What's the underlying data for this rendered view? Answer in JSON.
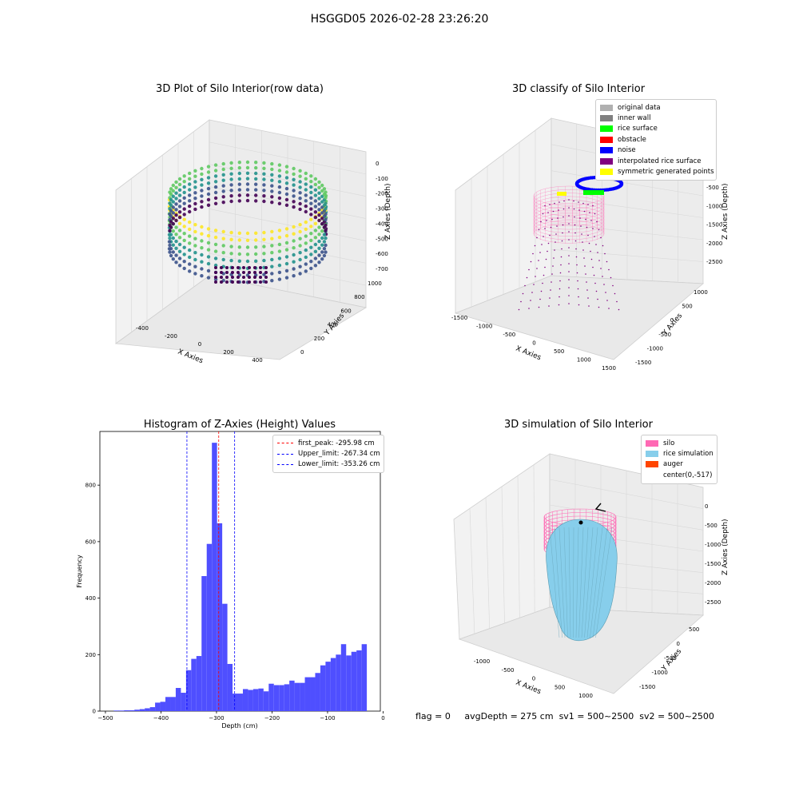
{
  "figure": {
    "suptitle": "HSGGD05 2026-02-28 23:26:20",
    "footer": {
      "flag": "flag = 0",
      "avg_depth": "avgDepth = 275 cm",
      "sv1": "sv1 = 500~2500",
      "sv2": "sv2 = 500~2500"
    }
  },
  "chart_data": [
    {
      "type": "scatter",
      "title": "3D Plot of Silo Interior(row data)",
      "xlabel": "X Axies",
      "ylabel": "Y Axies",
      "zlabel": "Z Axies (Depth)",
      "x_ticks": [
        "-400",
        "-200",
        "0",
        "200",
        "400"
      ],
      "y_ticks": [
        "0",
        "200",
        "400",
        "600",
        "800",
        "1000"
      ],
      "z_ticks": [
        "0",
        "-100",
        "-200",
        "-300",
        "-400",
        "-500",
        "-600",
        "-700"
      ],
      "colormap": [
        "#440154",
        "#3b528b",
        "#21918c",
        "#5ec962",
        "#fde725"
      ]
    },
    {
      "type": "scatter",
      "title": "3D classify of Silo Interior",
      "xlabel": "X Axies",
      "ylabel": "Y Axies",
      "zlabel": "Z Axies (Depth)",
      "x_ticks": [
        "-1500",
        "-1000",
        "-500",
        "0",
        "500",
        "1000",
        "1500"
      ],
      "y_ticks": [
        "-1500",
        "-1000",
        "-500",
        "0",
        "500",
        "1000"
      ],
      "z_ticks": [
        "0",
        "-500",
        "-1000",
        "-1500",
        "-2000",
        "-2500"
      ],
      "legend": [
        {
          "label": "original data",
          "color": "#b0b0b0"
        },
        {
          "label": "inner wall",
          "color": "#808080"
        },
        {
          "label": "rice surface",
          "color": "#00ff00"
        },
        {
          "label": "obstacle",
          "color": "#ff0000"
        },
        {
          "label": "noise",
          "color": "#0000ff"
        },
        {
          "label": "interpolated rice surface",
          "color": "#800080"
        },
        {
          "label": "symmetric generated points",
          "color": "#ffff00"
        }
      ]
    },
    {
      "type": "bar",
      "title": "Histogram of Z-Axies (Height) Values",
      "xlabel": "Depth (cm)",
      "ylabel": "Frequency",
      "xlim": [
        -510,
        -5
      ],
      "ylim": [
        0,
        990
      ],
      "x_ticks": [
        -500,
        -400,
        -300,
        -200,
        -100,
        0
      ],
      "y_ticks": [
        0,
        200,
        400,
        600,
        800
      ],
      "bar_color": "#4f4fff",
      "bin_width": 9.3,
      "bin_starts": [
        -485,
        -475.7,
        -466.4,
        -457.1,
        -447.8,
        -438.5,
        -429.2,
        -419.9,
        -410.6,
        -401.3,
        -392,
        -382.7,
        -373.4,
        -364.1,
        -354.8,
        -345.5,
        -336.2,
        -326.9,
        -317.6,
        -308.3,
        -299,
        -289.7,
        -280.4,
        -271.1,
        -261.8,
        -252.5,
        -243.2,
        -233.9,
        -224.6,
        -215.3,
        -206,
        -196.7,
        -187.4,
        -178.1,
        -168.8,
        -159.5,
        -150.2,
        -140.9,
        -131.6,
        -122.3,
        -113,
        -103.7,
        -94.4,
        -85.1,
        -75.8,
        -66.5,
        -57.2,
        -47.9,
        -38.6,
        -29.3,
        -20
      ],
      "values": [
        2,
        2,
        3,
        3,
        5,
        7,
        10,
        14,
        30,
        33,
        50,
        50,
        82,
        65,
        145,
        185,
        195,
        478,
        592,
        950,
        665,
        380,
        167,
        62,
        62,
        78,
        75,
        78,
        80,
        70,
        97,
        92,
        92,
        95,
        108,
        100,
        100,
        120,
        120,
        135,
        162,
        175,
        188,
        200,
        237,
        197,
        210,
        215,
        237,
        0,
        0
      ],
      "reference_lines": [
        {
          "label": "first_peak: -295.98 cm",
          "x": -295.98,
          "color": "#ff0000"
        },
        {
          "label": "Upper_limit: -267.34 cm",
          "x": -267.34,
          "color": "#0000ff"
        },
        {
          "label": "Lower_limit: -353.26 cm",
          "x": -353.26,
          "color": "#0000ff"
        }
      ]
    },
    {
      "type": "scatter",
      "title": "3D simulation of Silo Interior",
      "xlabel": "X Axies",
      "ylabel": "Y Axies",
      "zlabel": "Z Axies (Depth)",
      "x_ticks": [
        "-1000",
        "-500",
        "0",
        "500",
        "1000"
      ],
      "y_ticks": [
        "-1500",
        "-1000",
        "-500",
        "0",
        "500"
      ],
      "z_ticks": [
        "0",
        "-500",
        "-1000",
        "-1500",
        "-2000",
        "-2500"
      ],
      "legend": [
        {
          "label": "silo",
          "color": "#ff69b4"
        },
        {
          "label": "rice simulation",
          "color": "#87ceeb"
        },
        {
          "label": "auger",
          "color": "#ff4500"
        },
        {
          "label": "center(0,-517)",
          "color": ""
        }
      ]
    }
  ]
}
